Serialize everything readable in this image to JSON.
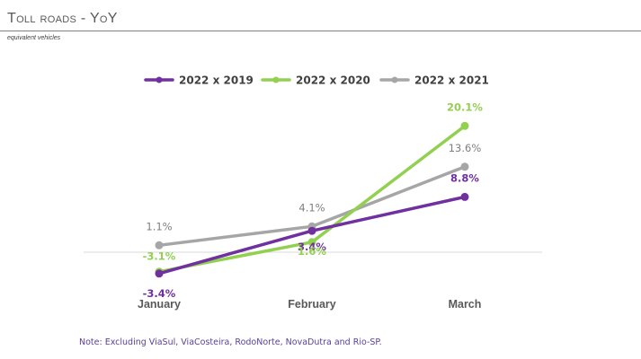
{
  "header": {
    "title": "Toll roads - YoY",
    "subtitle": "equivalent vehicles"
  },
  "note": "Note: Excluding ViaSul, ViaCosteira, RodoNorte, NovaDutra and Rio-SP.",
  "colors": {
    "series_2019": "#7030a0",
    "series_2020": "#92d050",
    "series_2021": "#a6a6a6",
    "axis": "#d9d9d9",
    "tick_label": "#595959"
  },
  "chart_data": {
    "type": "line",
    "categories": [
      "January",
      "February",
      "March"
    ],
    "ylim": [
      -6,
      24
    ],
    "grid": false,
    "legend_position": "top-center",
    "series": [
      {
        "name": "2022 x 2019",
        "color": "#7030a0",
        "values": [
          -3.4,
          3.4,
          8.8
        ],
        "labels": [
          "-3.4%",
          "3.4%",
          "8.8%"
        ]
      },
      {
        "name": "2022 x 2020",
        "color": "#92d050",
        "values": [
          -3.1,
          1.6,
          20.1
        ],
        "labels": [
          "-3.1%",
          "1.6%",
          "20.1%"
        ]
      },
      {
        "name": "2022 x 2021",
        "color": "#a6a6a6",
        "values": [
          1.1,
          4.1,
          13.6
        ],
        "labels": [
          "1.1%",
          "4.1%",
          "13.6%"
        ]
      }
    ]
  }
}
